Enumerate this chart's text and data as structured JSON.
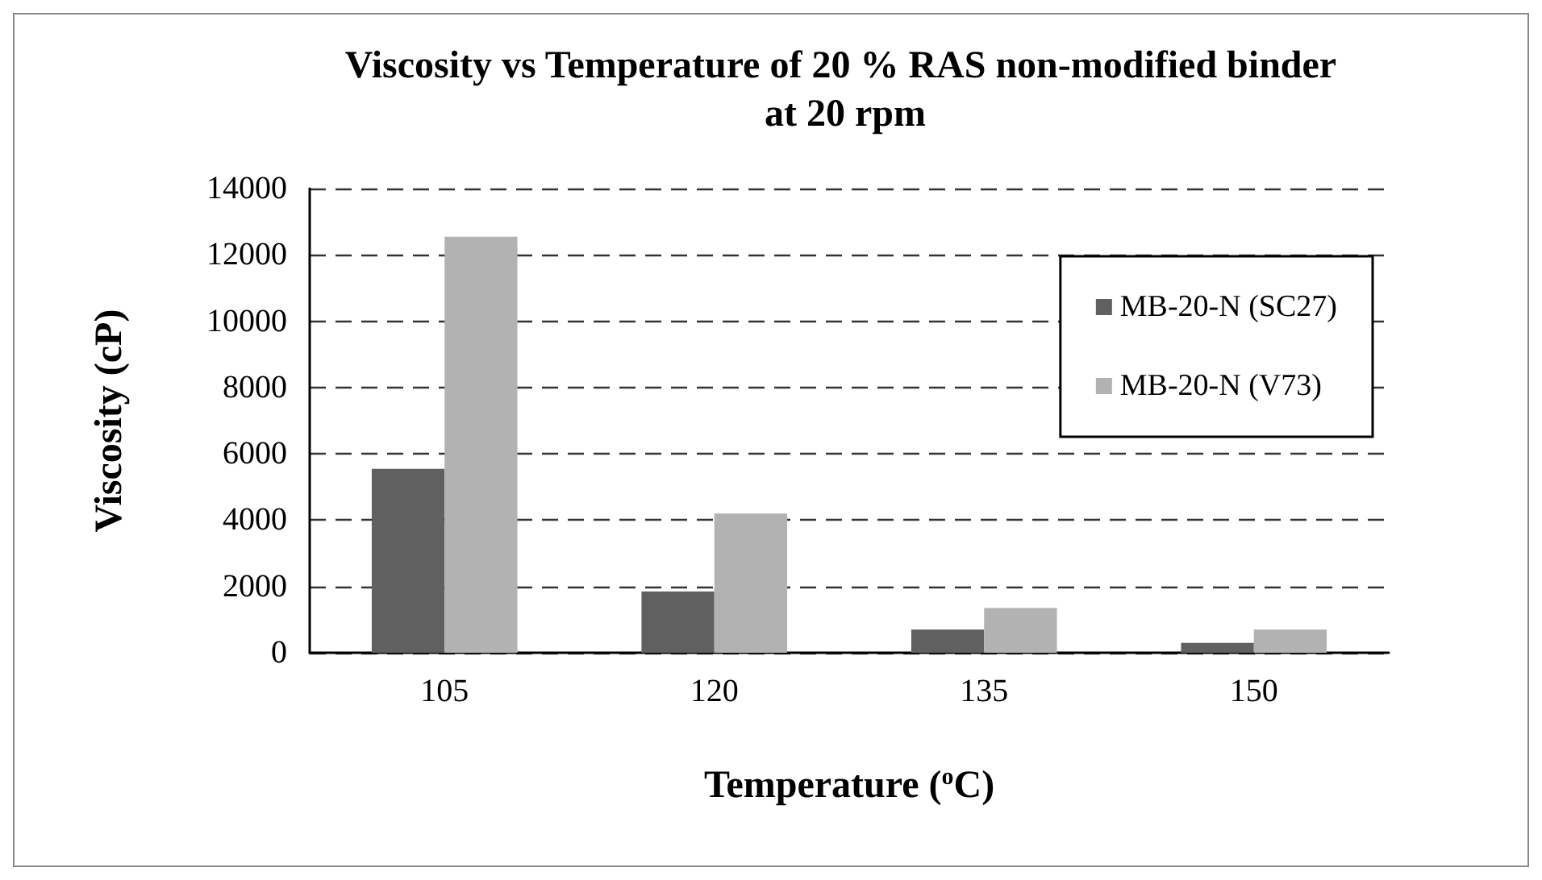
{
  "chart_data": {
    "type": "bar",
    "title": "Viscosity vs Temperature of 20 % RAS non-modified binder at 20 rpm",
    "xlabel": "Temperature ($^{o}$C)",
    "ylabel": "Viscosity (cP)",
    "categories": [
      "105",
      "120",
      "135",
      "150"
    ],
    "series": [
      {
        "name": "MB-20-N (SC27)",
        "color": "#606060",
        "values": [
          5550,
          1850,
          700,
          300
        ]
      },
      {
        "name": "MB-20-N (V73)",
        "color": "#b2b2b2",
        "values": [
          12550,
          4200,
          1350,
          700
        ]
      }
    ],
    "ylim": [
      0,
      14000
    ],
    "yticks": [
      0,
      2000,
      4000,
      6000,
      8000,
      10000,
      12000,
      14000
    ],
    "grid": "y",
    "legend": "top right"
  }
}
